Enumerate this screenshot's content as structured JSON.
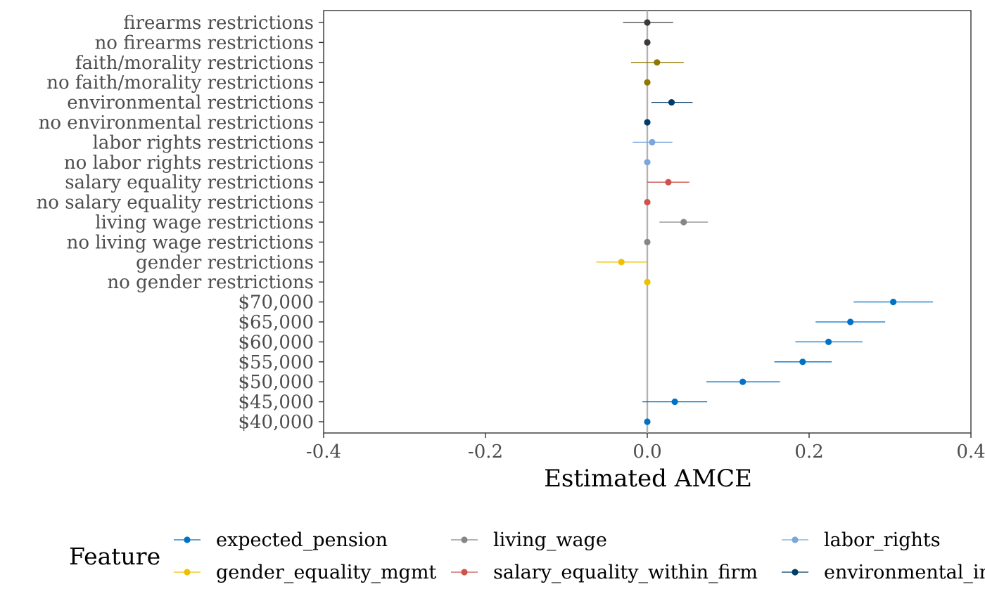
{
  "chart_data": {
    "type": "scatter",
    "subtype": "dot-and-whisker (coefficient plot)",
    "xlabel": "Estimated AMCE",
    "xlim": [
      -0.4,
      0.4
    ],
    "xticks": [
      -0.4,
      -0.2,
      0.0,
      0.2,
      0.4
    ],
    "xtick_labels": [
      "-0.4",
      "-0.2",
      "0.0",
      "0.2",
      "0.4"
    ],
    "reference_line_x": 0,
    "grid": false,
    "legend": {
      "title": "Feature",
      "placement": "bottom",
      "columns": [
        [
          "expected_pension",
          "gender_equality_mgmt"
        ],
        [
          "living_wage",
          "salary_equality_within_firm"
        ],
        [
          "labor_rights",
          "environmental_impact"
        ]
      ]
    },
    "colors": {
      "expected_pension": "#0072C6",
      "gender_equality_mgmt": "#EFC000",
      "living_wage": "#868686",
      "salary_equality_within_firm": "#CD534C",
      "labor_rights": "#7AA6DC",
      "environmental_impact": "#003C67",
      "faith_morality": "#8F7700",
      "firearms": "#3B3B3B"
    },
    "points": [
      {
        "label": "firearms restrictions",
        "feature": "firearms",
        "estimate": 0.0,
        "lower": -0.03,
        "upper": 0.032
      },
      {
        "label": "no firearms restrictions",
        "feature": "firearms",
        "estimate": 0.0,
        "lower": 0.0,
        "upper": 0.0
      },
      {
        "label": "faith/morality restrictions",
        "feature": "faith_morality",
        "estimate": 0.012,
        "lower": -0.02,
        "upper": 0.045
      },
      {
        "label": "no faith/morality restrictions",
        "feature": "faith_morality",
        "estimate": 0.0,
        "lower": 0.0,
        "upper": 0.0
      },
      {
        "label": "environmental restrictions",
        "feature": "environmental_impact",
        "estimate": 0.03,
        "lower": 0.005,
        "upper": 0.056
      },
      {
        "label": "no environmental restrictions",
        "feature": "environmental_impact",
        "estimate": 0.0,
        "lower": 0.0,
        "upper": 0.0
      },
      {
        "label": "labor rights restrictions",
        "feature": "labor_rights",
        "estimate": 0.006,
        "lower": -0.018,
        "upper": 0.031
      },
      {
        "label": "no labor rights restrictions",
        "feature": "labor_rights",
        "estimate": 0.0,
        "lower": 0.0,
        "upper": 0.0
      },
      {
        "label": "salary equality restrictions",
        "feature": "salary_equality_within_firm",
        "estimate": 0.026,
        "lower": 0.0,
        "upper": 0.052
      },
      {
        "label": "no salary equality restrictions",
        "feature": "salary_equality_within_firm",
        "estimate": 0.0,
        "lower": 0.0,
        "upper": 0.0
      },
      {
        "label": "living wage restrictions",
        "feature": "living_wage",
        "estimate": 0.045,
        "lower": 0.015,
        "upper": 0.075
      },
      {
        "label": "no living wage restrictions",
        "feature": "living_wage",
        "estimate": 0.0,
        "lower": 0.0,
        "upper": 0.0
      },
      {
        "label": "gender restrictions",
        "feature": "gender_equality_mgmt",
        "estimate": -0.032,
        "lower": -0.063,
        "upper": 0.0
      },
      {
        "label": "no gender restrictions",
        "feature": "gender_equality_mgmt",
        "estimate": 0.0,
        "lower": 0.0,
        "upper": 0.0
      },
      {
        "label": "$70,000",
        "feature": "expected_pension",
        "estimate": 0.304,
        "lower": 0.255,
        "upper": 0.353
      },
      {
        "label": "$65,000",
        "feature": "expected_pension",
        "estimate": 0.251,
        "lower": 0.208,
        "upper": 0.294
      },
      {
        "label": "$60,000",
        "feature": "expected_pension",
        "estimate": 0.224,
        "lower": 0.183,
        "upper": 0.266
      },
      {
        "label": "$55,000",
        "feature": "expected_pension",
        "estimate": 0.192,
        "lower": 0.157,
        "upper": 0.228
      },
      {
        "label": "$50,000",
        "feature": "expected_pension",
        "estimate": 0.118,
        "lower": 0.073,
        "upper": 0.164
      },
      {
        "label": "$45,000",
        "feature": "expected_pension",
        "estimate": 0.034,
        "lower": -0.006,
        "upper": 0.074
      },
      {
        "label": "$40,000",
        "feature": "expected_pension",
        "estimate": 0.0,
        "lower": 0.0,
        "upper": 0.0
      }
    ]
  }
}
